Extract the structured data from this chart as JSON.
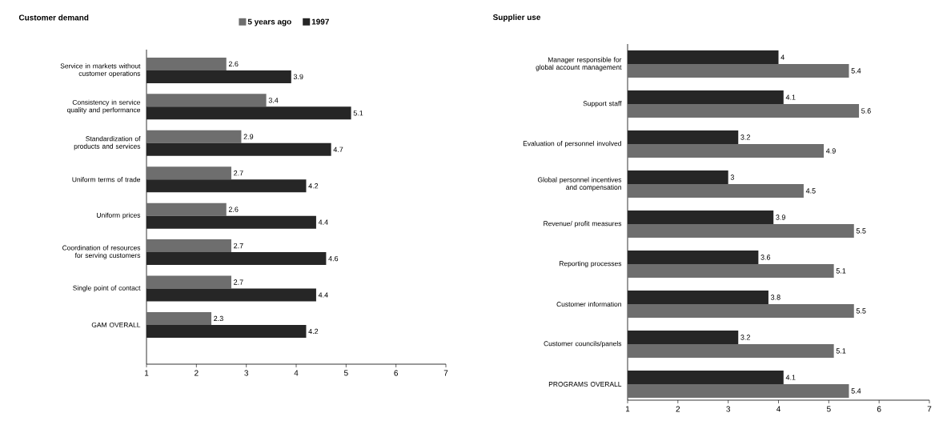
{
  "chart_data": [
    {
      "type": "bar",
      "orientation": "horizontal",
      "title": "Customer demand",
      "legend": "top",
      "data_labels": true,
      "categories": [
        "Service in markets without customer operations",
        "Consistency in service quality and performance",
        "Standardization of products and services",
        "Uniform terms of trade",
        "Uniform prices",
        "Coordination of resources for serving customers",
        "Single point of contact",
        "GAM OVERALL"
      ],
      "series": [
        {
          "name": "5 years ago",
          "color": "#6e6e6e",
          "values": [
            2.6,
            3.4,
            2.9,
            2.7,
            2.6,
            2.7,
            2.7,
            2.3
          ]
        },
        {
          "name": "1997",
          "color": "#262626",
          "values": [
            3.9,
            5.1,
            4.7,
            4.2,
            4.4,
            4.6,
            4.4,
            4.2
          ]
        }
      ],
      "xlim": [
        1,
        7
      ],
      "xticks": [
        1,
        2,
        3,
        4,
        5,
        6,
        7
      ]
    },
    {
      "type": "bar",
      "orientation": "horizontal",
      "title": "Supplier use",
      "data_labels": true,
      "categories": [
        "Manager responsible for global account management",
        "Support staff",
        "Evaluation of personnel involved",
        "Global personnel incentives and compensation",
        "Revenue/ profit measures",
        "Reporting processes",
        "Customer information",
        "Customer councils/panels",
        "PROGRAMS OVERALL"
      ],
      "series": [
        {
          "color": "#262626",
          "values": [
            4,
            4.1,
            3.2,
            3,
            3.9,
            3.6,
            3.8,
            3.2,
            4.1
          ]
        },
        {
          "color": "#6e6e6e",
          "values": [
            5.4,
            5.6,
            4.9,
            4.5,
            5.5,
            5.1,
            5.5,
            5.1,
            5.4
          ]
        }
      ],
      "xlim": [
        1,
        7
      ],
      "xticks": [
        1,
        2,
        3,
        4,
        5,
        6,
        7
      ]
    }
  ]
}
